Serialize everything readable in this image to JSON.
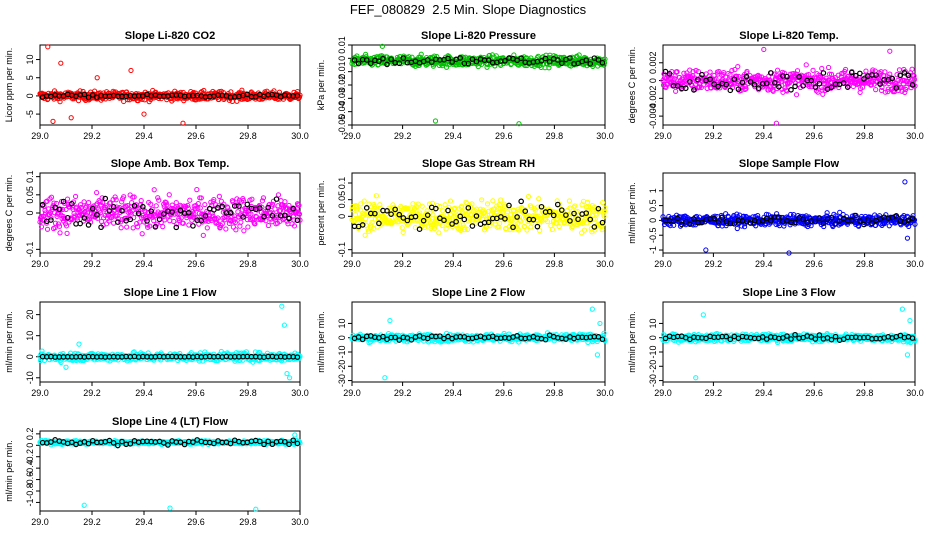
{
  "title": "FEF_080829  2.5 Min. Slope Diagnostics",
  "colors": {
    "cycle": "#000000"
  },
  "chart_data": [
    {
      "type": "scatter",
      "title": "Slope Li-820 CO2",
      "ylabel": "Licor ppm per min.",
      "xlim": [
        29.0,
        30.0
      ],
      "ylim": [
        -8,
        14
      ],
      "xticks": [
        "29.0",
        "29.2",
        "29.4",
        "29.6",
        "29.8",
        "30.0"
      ],
      "yticks": [
        -5,
        0,
        5,
        10
      ],
      "color": "#ff0000",
      "amp": 1.2,
      "spikes": [
        {
          "x": 29.03,
          "y": 13.5
        },
        {
          "x": 29.08,
          "y": 9
        },
        {
          "x": 29.12,
          "y": -6
        },
        {
          "x": 29.05,
          "y": -7
        },
        {
          "x": 29.35,
          "y": 7
        },
        {
          "x": 29.55,
          "y": -7.5
        },
        {
          "x": 29.22,
          "y": 5
        },
        {
          "x": 29.4,
          "y": -5
        }
      ],
      "black_amp": 0.4
    },
    {
      "type": "scatter",
      "title": "Slope Li-820 Pressure",
      "ylabel": "kPa per min.",
      "xlim": [
        29.0,
        30.0
      ],
      "ylim": [
        -0.05,
        0.01
      ],
      "xticks": [
        "29.0",
        "29.2",
        "29.4",
        "29.6",
        "29.8",
        "30.0"
      ],
      "yticks": [
        -0.05,
        -0.04,
        -0.03,
        -0.02,
        -0.01,
        0.0,
        0.01
      ],
      "color": "#00c000",
      "amp": 0.004,
      "center": -0.002,
      "spikes": [
        {
          "x": 29.33,
          "y": -0.047
        },
        {
          "x": 29.66,
          "y": -0.049
        },
        {
          "x": 29.12,
          "y": 0.009
        }
      ],
      "black_amp": 0.003
    },
    {
      "type": "scatter",
      "title": "Slope Li-820 Temp.",
      "ylabel": "degrees C per min.",
      "xlim": [
        29.0,
        30.0
      ],
      "ylim": [
        -0.005,
        0.004
      ],
      "xticks": [
        "29.0",
        "29.2",
        "29.4",
        "29.6",
        "29.8",
        "30.0"
      ],
      "yticks": [
        -0.004,
        -0.002,
        0.0,
        0.002
      ],
      "color": "#ff00ff",
      "amp": 0.0012,
      "spikes": [
        {
          "x": 29.45,
          "y": -0.0048
        },
        {
          "x": 29.4,
          "y": 0.0035
        },
        {
          "x": 29.9,
          "y": 0.0033
        }
      ],
      "black_amp": 0.0012
    },
    {
      "type": "scatter",
      "title": "Slope Amb. Box Temp.",
      "ylabel": "degrees C per min.",
      "xlim": [
        29.0,
        30.0
      ],
      "ylim": [
        -0.11,
        0.11
      ],
      "xticks": [
        "29.0",
        "29.2",
        "29.4",
        "29.6",
        "29.8",
        "30.0"
      ],
      "yticks": [
        -0.1,
        0.0,
        0.05,
        0.1
      ],
      "color": "#ff00ff",
      "amp": 0.045,
      "spikes": [],
      "black_amp": 0.04
    },
    {
      "type": "scatter",
      "title": "Slope Gas Stream RH",
      "ylabel": "percent per min.",
      "xlim": [
        29.0,
        30.0
      ],
      "ylim": [
        -0.11,
        0.13
      ],
      "xticks": [
        "29.0",
        "29.2",
        "29.4",
        "29.6",
        "29.8",
        "30.0"
      ],
      "yticks": [
        -0.1,
        0.0,
        0.05,
        0.1
      ],
      "color": "#ffff00",
      "amp": 0.045,
      "spikes": [],
      "black_amp": 0.04
    },
    {
      "type": "scatter",
      "title": "Slope Sample Flow",
      "ylabel": "ml/min per min.",
      "xlim": [
        29.0,
        30.0
      ],
      "ylim": [
        -1.1,
        1.6
      ],
      "xticks": [
        "29.0",
        "29.2",
        "29.4",
        "29.6",
        "29.8",
        "30.0"
      ],
      "yticks": [
        -1.0,
        -0.5,
        0.0,
        0.5,
        1.0
      ],
      "color": "#0000ff",
      "amp": 0.18,
      "spikes": [
        {
          "x": 29.17,
          "y": -1.0
        },
        {
          "x": 29.5,
          "y": -1.1
        },
        {
          "x": 29.96,
          "y": 1.3
        },
        {
          "x": 29.97,
          "y": -0.6
        }
      ],
      "black_amp": 0.12
    },
    {
      "type": "scatter",
      "title": "Slope Line 1 Flow",
      "ylabel": "ml/min per min.",
      "xlim": [
        29.0,
        30.0
      ],
      "ylim": [
        -12,
        26
      ],
      "xticks": [
        "29.0",
        "29.2",
        "29.4",
        "29.6",
        "29.8",
        "30.0"
      ],
      "yticks": [
        -10,
        0,
        10,
        20
      ],
      "color": "#00ffff",
      "amp": 2.0,
      "spikes": [
        {
          "x": 29.93,
          "y": 24
        },
        {
          "x": 29.95,
          "y": -8
        },
        {
          "x": 29.94,
          "y": 15
        },
        {
          "x": 29.96,
          "y": -10
        },
        {
          "x": 29.1,
          "y": -5
        },
        {
          "x": 29.15,
          "y": 6
        }
      ],
      "black_amp": 0.2
    },
    {
      "type": "scatter",
      "title": "Slope Line 2 Flow",
      "ylabel": "ml/min per min.",
      "xlim": [
        29.0,
        30.0
      ],
      "ylim": [
        -31,
        25
      ],
      "xticks": [
        "29.0",
        "29.2",
        "29.4",
        "29.6",
        "29.8",
        "30.0"
      ],
      "yticks": [
        -30,
        -20,
        -10,
        0,
        10
      ],
      "color": "#00ffff",
      "amp": 2.5,
      "spikes": [
        {
          "x": 29.13,
          "y": -28
        },
        {
          "x": 29.95,
          "y": 20
        },
        {
          "x": 29.97,
          "y": -12
        },
        {
          "x": 29.15,
          "y": 12
        },
        {
          "x": 29.98,
          "y": 10
        }
      ],
      "black_amp": 1.5
    },
    {
      "type": "scatter",
      "title": "Slope Line 3 Flow",
      "ylabel": "ml/min per min.",
      "xlim": [
        29.0,
        30.0
      ],
      "ylim": [
        -31,
        25
      ],
      "xticks": [
        "29.0",
        "29.2",
        "29.4",
        "29.6",
        "29.8",
        "30.0"
      ],
      "yticks": [
        -30,
        -20,
        -10,
        0,
        10
      ],
      "color": "#00ffff",
      "amp": 2.5,
      "spikes": [
        {
          "x": 29.13,
          "y": -28
        },
        {
          "x": 29.95,
          "y": 20
        },
        {
          "x": 29.97,
          "y": -12
        },
        {
          "x": 29.16,
          "y": 16
        },
        {
          "x": 29.98,
          "y": 12
        }
      ],
      "black_amp": 1.5
    },
    {
      "type": "scatter",
      "title": "Slope Line 4 (LT) Flow",
      "ylabel": "ml/min per min.",
      "xlim": [
        29.0,
        30.0
      ],
      "ylim": [
        -1.15,
        0.25
      ],
      "xticks": [
        "29.0",
        "29.2",
        "29.4",
        "29.6",
        "29.8",
        "30.0"
      ],
      "yticks": [
        -1.0,
        -0.8,
        -0.6,
        -0.4,
        -0.2,
        0.0,
        0.2
      ],
      "color": "#00ffff",
      "amp": 0.03,
      "center": 0.05,
      "spikes": [
        {
          "x": 29.17,
          "y": -1.05
        },
        {
          "x": 29.5,
          "y": -1.1
        },
        {
          "x": 29.83,
          "y": -1.12
        },
        {
          "x": 29.98,
          "y": 0.18
        }
      ],
      "black_amp": 0.05
    }
  ]
}
